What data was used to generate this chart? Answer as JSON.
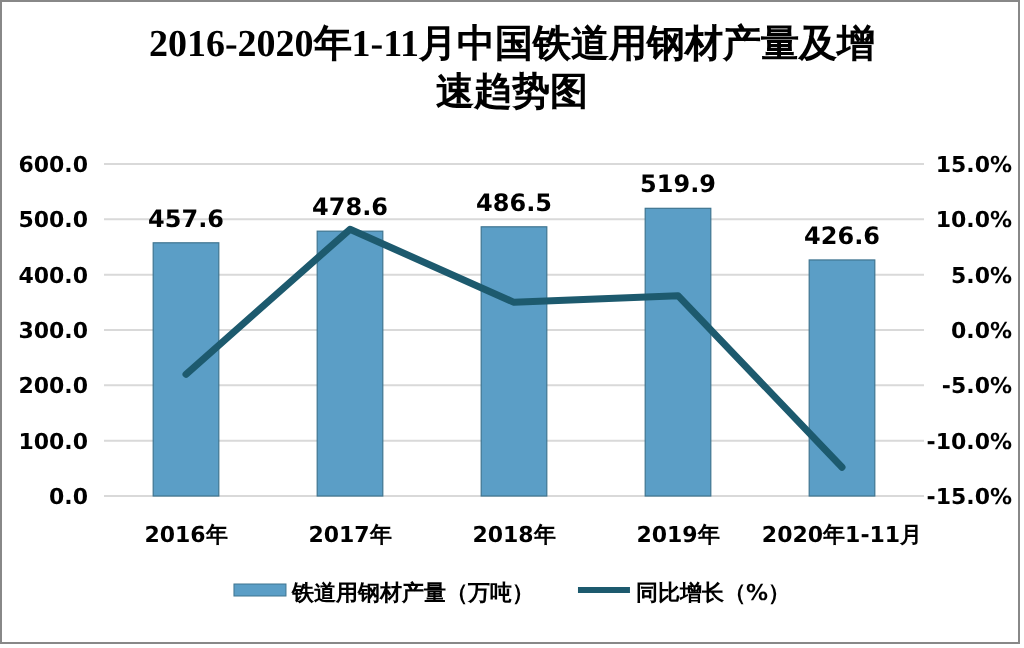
{
  "chart_data": {
    "type": "bar",
    "title": "2016-2020年1-11月中国铁道用钢材产量及增速趋势图",
    "categories": [
      "2016年",
      "2017年",
      "2018年",
      "2019年",
      "2020年1-11月"
    ],
    "series": [
      {
        "name": "铁道用钢材产量（万吨）",
        "color": "#5b9ec6",
        "values": [
          457.6,
          478.6,
          486.5,
          519.9,
          426.6
        ],
        "value_labels": [
          "457.6",
          "478.6",
          "486.5",
          "519.9",
          "426.6"
        ]
      },
      {
        "name": "同比增长（%）",
        "type": "line",
        "axis": "y2",
        "color": "#1d5a6e",
        "values": [
          -4.0,
          9.1,
          2.5,
          3.1,
          -12.4
        ]
      }
    ],
    "ylim": [
      0,
      600
    ],
    "yticks": [
      {
        "value": 0,
        "label": "0.0"
      },
      {
        "value": 100,
        "label": "100.0"
      },
      {
        "value": 200,
        "label": "200.0"
      },
      {
        "value": 300,
        "label": "300.0"
      },
      {
        "value": 400,
        "label": "400.0"
      },
      {
        "value": 500,
        "label": "500.0"
      },
      {
        "value": 600,
        "label": "600.0"
      }
    ],
    "y2lim": [
      -15,
      15
    ],
    "y2ticks": [
      {
        "value": -15,
        "label": "-15.0%"
      },
      {
        "value": -10,
        "label": "-10.0%"
      },
      {
        "value": -5,
        "label": "-5.0%"
      },
      {
        "value": 0,
        "label": "0.0%"
      },
      {
        "value": 5,
        "label": "5.0%"
      },
      {
        "value": 10,
        "label": "10.0%"
      },
      {
        "value": 15,
        "label": "15.0%"
      }
    ],
    "grid": "y",
    "legend": "bottom",
    "marker": "none",
    "line_style": "solid"
  }
}
